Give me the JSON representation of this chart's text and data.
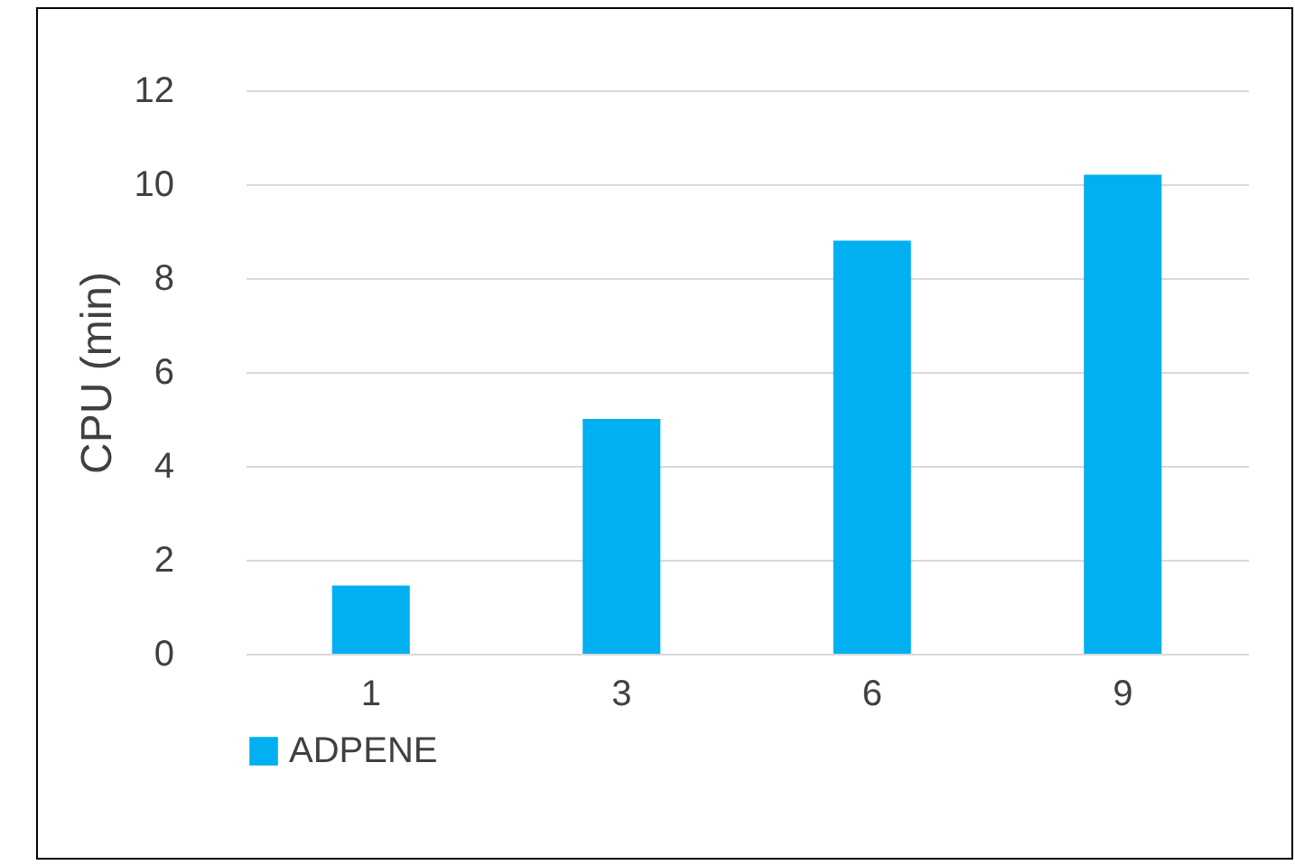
{
  "chart_data": {
    "type": "bar",
    "ylabel": "CPU (min)",
    "categories": [
      "1",
      "3",
      "6",
      "9"
    ],
    "series": [
      {
        "name": "ADPENE",
        "color": "#00b0f0",
        "values": [
          1.45,
          5.0,
          8.8,
          10.2
        ]
      }
    ],
    "ylim": [
      0,
      12
    ],
    "yticks": [
      0,
      2,
      4,
      6,
      8,
      10,
      12
    ],
    "grid": "y",
    "legend": "bottom"
  }
}
